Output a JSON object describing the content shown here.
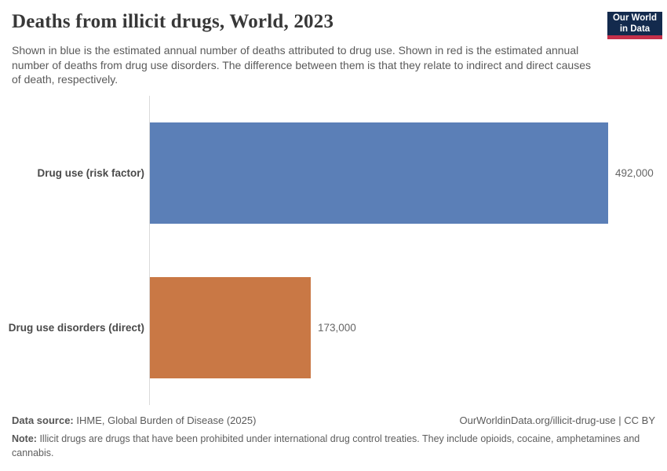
{
  "header": {
    "title": "Deaths from illicit drugs, World, 2023",
    "subtitle": "Shown in blue is the estimated annual number of deaths attributed to drug use. Shown in red is the estimated annual number of deaths from drug use disorders. The difference between them is that they relate to indirect and direct causes of death, respectively.",
    "logo": {
      "line1": "Our World",
      "line2": "in Data",
      "bg_color": "#132a4d",
      "accent_color": "#c5304a"
    }
  },
  "chart_data": {
    "type": "bar",
    "orientation": "horizontal",
    "title": "Deaths from illicit drugs, World, 2023",
    "categories": [
      "Drug use (risk factor)",
      "Drug use disorders (direct)"
    ],
    "values": [
      492000,
      173000
    ],
    "value_labels": [
      "492,000",
      "173,000"
    ],
    "colors": [
      "#5b7fb7",
      "#c97845"
    ],
    "xlim": [
      0,
      492000
    ],
    "xlabel": "",
    "ylabel": "",
    "grid": false,
    "legend": false
  },
  "footer": {
    "source_label": "Data source:",
    "source_text": "IHME, Global Burden of Disease (2025)",
    "attribution": "OurWorldinData.org/illicit-drug-use | CC BY",
    "note_label": "Note:",
    "note_text": "Illicit drugs are drugs that have been prohibited under international drug control treaties. They include opioids, cocaine, amphetamines and cannabis."
  }
}
